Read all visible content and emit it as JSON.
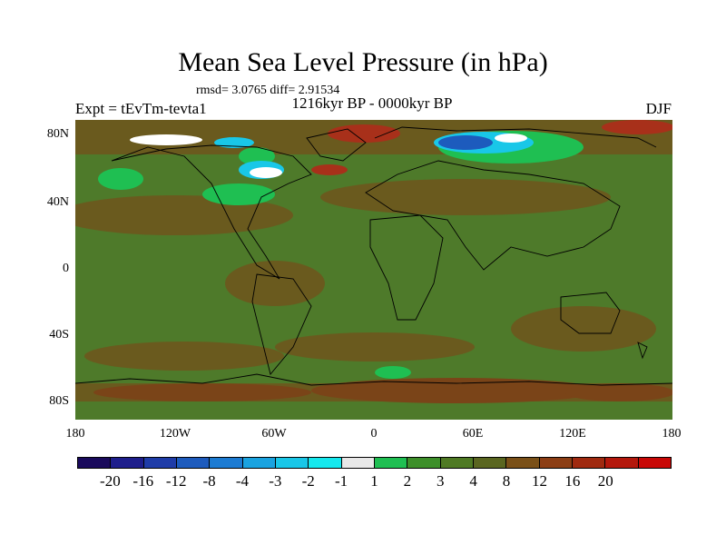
{
  "title": "Mean Sea Level Pressure (in hPa)",
  "stats": "rmsd= 3.0765 diff= 2.91534",
  "subtitle": "1216kyr BP - 0000kyr BP",
  "experiment": "Expt = tEvTm-tevta1",
  "season": "DJF",
  "lat_labels": [
    "80N",
    "40N",
    "0",
    "40S",
    "80S"
  ],
  "lon_labels": [
    "180",
    "120W",
    "60W",
    "0",
    "60E",
    "120E",
    "180"
  ],
  "colorbar": {
    "colors": [
      "#1a0a5c",
      "#1e1e8c",
      "#1f3ca8",
      "#1d5bbd",
      "#1c7bd2",
      "#1aa3e0",
      "#19c7e8",
      "#15e8ee",
      "#e8e8e8",
      "#1fbf52",
      "#3d8f2a",
      "#4f7a24",
      "#5a6620",
      "#7a5018",
      "#8c3e14",
      "#a02a10",
      "#b4180c",
      "#c80806"
    ],
    "labels": [
      "-20",
      "-16",
      "-12",
      "-8",
      "-4",
      "-3",
      "-2",
      "-1",
      "1",
      "2",
      "3",
      "4",
      "8",
      "12",
      "16",
      "20"
    ]
  },
  "map_colors": {
    "base": "#4e7a2a",
    "brown": "#6a5a1e",
    "darkbrown": "#7a4418",
    "red": "#a8301a",
    "green": "#1fbf52",
    "cyan": "#19c7e8",
    "blue": "#1d5bbd",
    "white": "#ffffff"
  }
}
